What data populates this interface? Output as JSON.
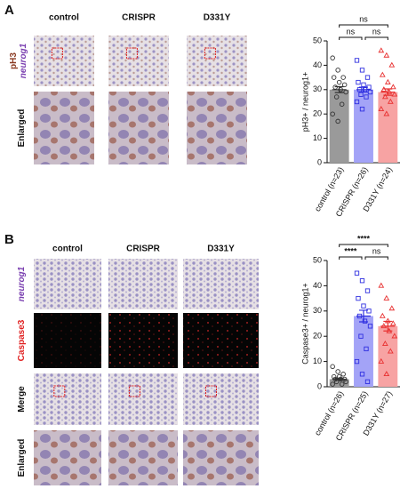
{
  "panels": [
    {
      "label": "A",
      "columns": [
        "control",
        "CRISPR",
        "D331Y"
      ],
      "rows": [
        [
          "pH3",
          "neurog1"
        ],
        [
          "Enlarged"
        ]
      ]
    },
    {
      "label": "B",
      "columns": [
        "control",
        "CRISPR",
        "D331Y"
      ],
      "rows": [
        [
          "neurog1"
        ],
        [
          "Caspase3"
        ],
        [
          "Merge"
        ],
        [
          "Enlarged"
        ]
      ]
    }
  ],
  "chart_data": [
    {
      "type": "bar",
      "y_label": "pH3+ / neurog1+",
      "categories": [
        "control (n=23)",
        "CRISPR (n=26)",
        "D331Y (n=24)"
      ],
      "values": [
        30,
        30,
        29
      ],
      "errors": [
        1.2,
        1.0,
        1.3
      ],
      "colors": [
        "#9a9a9a",
        "#a3a3f7",
        "#f7a3a3"
      ],
      "point_colors": [
        "#333333",
        "#2f2fe0",
        "#e83030"
      ],
      "markers": [
        "circle",
        "square",
        "triangle"
      ],
      "points": [
        [
          43,
          38,
          35,
          35,
          33,
          32,
          31,
          30,
          29,
          27,
          24,
          20,
          17
        ],
        [
          42,
          38,
          35,
          33,
          32,
          31,
          30,
          30,
          29,
          28,
          27,
          25,
          22
        ],
        [
          46,
          44,
          40,
          36,
          33,
          31,
          30,
          29,
          28,
          27,
          25,
          22,
          20
        ]
      ],
      "annotations": [
        "ns",
        "ns",
        "ns"
      ],
      "ylim": [
        0,
        50
      ],
      "yticks": [
        0,
        10,
        20,
        30,
        40,
        50
      ]
    },
    {
      "type": "bar",
      "y_label": "Caspase3+ / neurog1+",
      "categories": [
        "control (n=26)",
        "CRISPR (n=25)",
        "D331Y (n=27)"
      ],
      "values": [
        3,
        28,
        24
      ],
      "errors": [
        0.4,
        2.3,
        1.9
      ],
      "colors": [
        "#9a9a9a",
        "#a3a3f7",
        "#f7a3a3"
      ],
      "point_colors": [
        "#333333",
        "#2f2fe0",
        "#e83030"
      ],
      "markers": [
        "circle",
        "square",
        "triangle"
      ],
      "points": [
        [
          8,
          6,
          5,
          4,
          4,
          3,
          3,
          3,
          2,
          2,
          1,
          1
        ],
        [
          45,
          42,
          38,
          35,
          32,
          30,
          28,
          26,
          24,
          20,
          15,
          10,
          5,
          2
        ],
        [
          40,
          35,
          31,
          28,
          26,
          25,
          24,
          22,
          20,
          17,
          14,
          10,
          5
        ]
      ],
      "annotations": [
        "****",
        "****",
        "ns"
      ],
      "ylim": [
        0,
        50
      ],
      "yticks": [
        0,
        10,
        20,
        30,
        40,
        50
      ]
    }
  ]
}
